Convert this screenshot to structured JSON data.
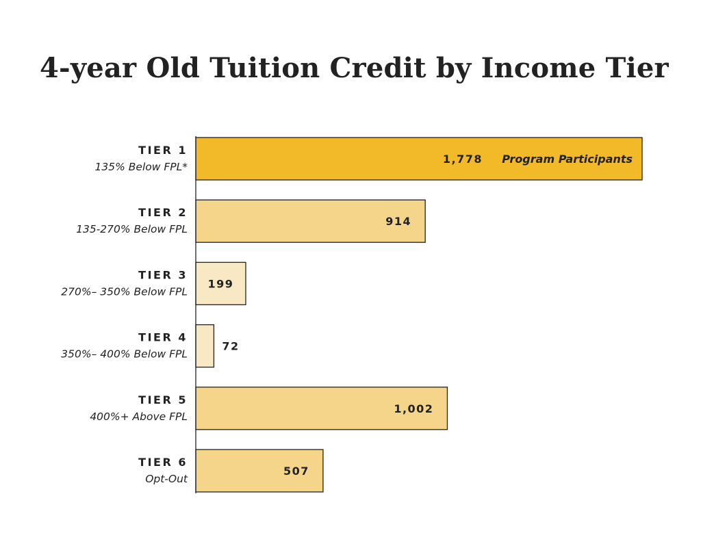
{
  "title": "4-year Old Tuition Credit by Income Tier",
  "chart_data": {
    "type": "bar",
    "orientation": "horizontal",
    "title": "4-year Old Tuition Credit by Income Tier",
    "categories": [
      "TIER 1",
      "TIER 2",
      "TIER 3",
      "TIER 4",
      "TIER 5",
      "TIER 6"
    ],
    "category_descriptions": [
      "135% Below FPL*",
      "135-270% Below FPL",
      "270%– 350% Below FPL",
      "350%– 400% Below FPL",
      "400%+ Above FPL",
      "Opt-Out"
    ],
    "values": [
      1778,
      914,
      199,
      72,
      1002,
      507
    ],
    "value_labels": [
      "1,778",
      "914",
      "199",
      "72",
      "1,002",
      "507"
    ],
    "annotation": "Program Participants",
    "colors": [
      "#F2B928",
      "#F5D58A",
      "#F8E8C4",
      "#F8E8C4",
      "#F5D58A",
      "#F5D58A"
    ],
    "bar_stroke": "#222222",
    "xlim": [
      0,
      1778
    ],
    "grid": false,
    "legend": "none"
  }
}
